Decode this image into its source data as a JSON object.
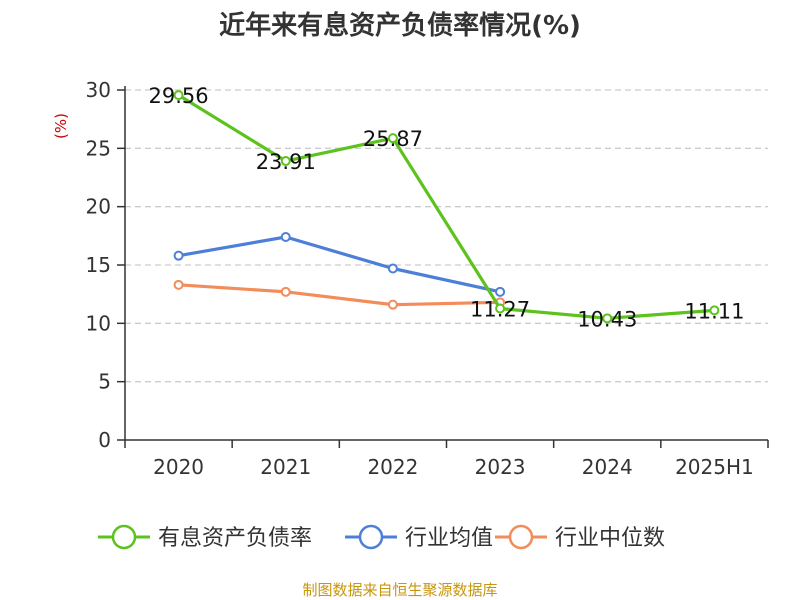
{
  "title": "近年来有息资产负债率情况(%)",
  "source": "制图数据来自恒生聚源数据库",
  "colors": {
    "series_1": "#5dc21e",
    "series_2": "#4e7fd8",
    "series_3": "#f28c5a",
    "axis": "#333333",
    "grid": "#cccccc",
    "unit": "#cc0000",
    "source": "#c8960c"
  },
  "chart_data": {
    "type": "line",
    "title": "近年来有息资产负债率情况(%)",
    "ylabel": "(%)",
    "xlabel": "",
    "categories": [
      "2020",
      "2021",
      "2022",
      "2023",
      "2024",
      "2025H1"
    ],
    "ylim": [
      0,
      30
    ],
    "yticks": [
      0,
      5,
      10,
      15,
      20,
      25,
      30
    ],
    "grid": "horizontal dashed",
    "legend_position": "bottom",
    "series": [
      {
        "name": "有息资产负债率",
        "color": "#5dc21e",
        "values": [
          29.56,
          23.91,
          25.87,
          11.27,
          10.43,
          11.11
        ],
        "labels": [
          "29.56",
          "23.91",
          "25.87",
          "11.27",
          "10.43",
          "11.11"
        ]
      },
      {
        "name": "行业均值",
        "color": "#4e7fd8",
        "values": [
          15.8,
          17.4,
          14.7,
          12.7,
          null,
          null
        ]
      },
      {
        "name": "行业中位数",
        "color": "#f28c5a",
        "values": [
          13.3,
          12.7,
          11.6,
          11.8,
          null,
          null
        ]
      }
    ]
  }
}
